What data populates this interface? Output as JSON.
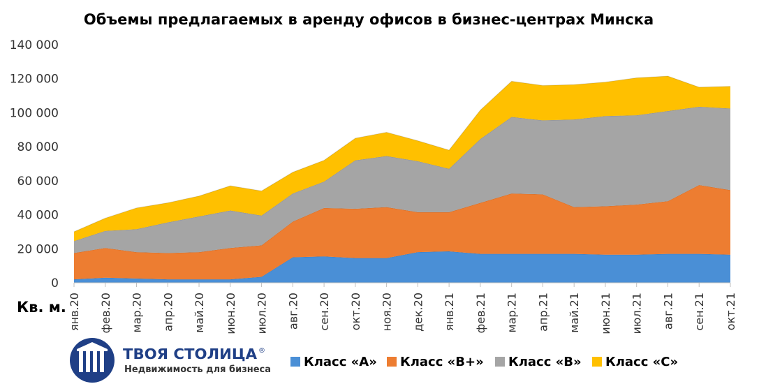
{
  "chart_data": {
    "type": "area",
    "stacked": true,
    "title": "Объемы предлагаемых в аренду офисов в бизнес-центрах Минска",
    "unit_label": "Кв. м.",
    "categories": [
      "янв.20",
      "фев.20",
      "мар.20",
      "апр.20",
      "май.20",
      "июн.20",
      "июл.20",
      "авг.20",
      "сен.20",
      "окт.20",
      "ноя.20",
      "дек.20",
      "янв.21",
      "фев.21",
      "мар.21",
      "апр.21",
      "май.21",
      "июн.21",
      "июл.21",
      "авг.21",
      "сен.21",
      "окт.21"
    ],
    "series": [
      {
        "name": "Класс «А»",
        "color": "#4a8fd6",
        "values": [
          2000,
          3000,
          2500,
          2000,
          2000,
          2000,
          3500,
          15000,
          15500,
          14500,
          14500,
          18000,
          18500,
          17000,
          17000,
          17000,
          17000,
          16500,
          16500,
          17000,
          17000,
          16500
        ]
      },
      {
        "name": "Класс «В+»",
        "color": "#ed7d31",
        "values": [
          15500,
          17500,
          15500,
          15500,
          16000,
          18500,
          18500,
          21000,
          28500,
          29000,
          30000,
          23500,
          23000,
          30000,
          35500,
          35000,
          27500,
          28500,
          29500,
          31000,
          40500,
          38000
        ]
      },
      {
        "name": "Класс «В»",
        "color": "#a5a5a5",
        "values": [
          7000,
          10000,
          13500,
          18000,
          21000,
          22000,
          17500,
          16500,
          15500,
          28500,
          30000,
          30000,
          25500,
          37500,
          45000,
          43500,
          51500,
          53000,
          52500,
          53000,
          46000,
          48000
        ]
      },
      {
        "name": "Класс «С»",
        "color": "#ffc000",
        "values": [
          5500,
          7500,
          12500,
          11500,
          12000,
          14500,
          14500,
          12500,
          12500,
          13000,
          14000,
          12000,
          11000,
          17000,
          21000,
          20500,
          20500,
          20000,
          22000,
          20500,
          11500,
          13000
        ]
      }
    ],
    "y_axis": {
      "min": 0,
      "max": 140000,
      "ticks": [
        "0",
        "20 000",
        "40 000",
        "60 000",
        "80 000",
        "100 000",
        "120 000",
        "140 000"
      ]
    },
    "grid": false,
    "legend_position": "bottom-right"
  },
  "logo": {
    "name": "ТВОЯ СТОЛИЦА",
    "mark": "®",
    "tagline": "Недвижимость для бизнеса"
  }
}
